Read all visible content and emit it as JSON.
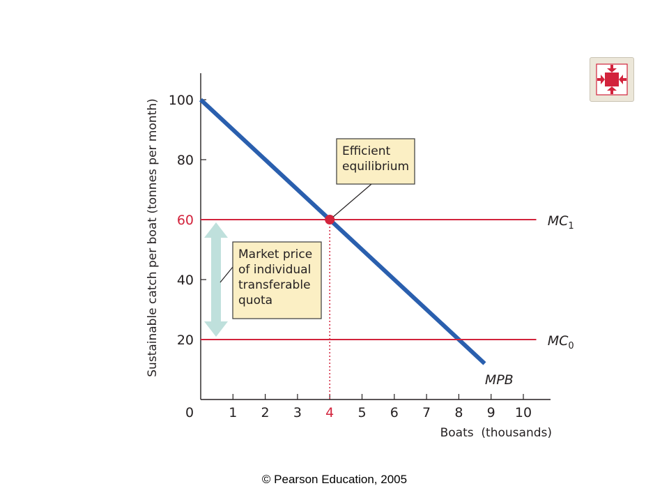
{
  "chart_data": {
    "type": "line",
    "title": "",
    "xlabel": "Boats  (thousands)",
    "ylabel": "Sustainable catch per boat (tonnes per month)",
    "xlim": [
      0,
      10.5
    ],
    "ylim": [
      0,
      110
    ],
    "x_ticks": [
      {
        "value": 0,
        "label": "0"
      },
      {
        "value": 1,
        "label": "1"
      },
      {
        "value": 2,
        "label": "2"
      },
      {
        "value": 3,
        "label": "3"
      },
      {
        "value": 4,
        "label": "4",
        "highlight": true
      },
      {
        "value": 5,
        "label": "5"
      },
      {
        "value": 6,
        "label": "6"
      },
      {
        "value": 7,
        "label": "7"
      },
      {
        "value": 8,
        "label": "8"
      },
      {
        "value": 9,
        "label": "9"
      },
      {
        "value": 10,
        "label": "10"
      }
    ],
    "y_ticks": [
      {
        "value": 20,
        "label": "20"
      },
      {
        "value": 40,
        "label": "40"
      },
      {
        "value": 60,
        "label": "60",
        "highlight": true
      },
      {
        "value": 80,
        "label": "80"
      },
      {
        "value": 100,
        "label": "100"
      }
    ],
    "series": [
      {
        "key": "mpb",
        "label_main": "MPB",
        "label_sub": "",
        "color": "#2a5fae",
        "points": [
          [
            0,
            100
          ],
          [
            8.8,
            12
          ]
        ],
        "label_at": [
          9.25,
          7
        ]
      },
      {
        "key": "mc1",
        "label_main": "MC",
        "label_sub": "1",
        "color": "#d2233c",
        "points": [
          [
            0,
            60
          ],
          [
            10.4,
            60
          ]
        ],
        "label_at": [
          10.75,
          60
        ]
      },
      {
        "key": "mc0",
        "label_main": "MC",
        "label_sub": "0",
        "color": "#d2233c",
        "points": [
          [
            0,
            20
          ],
          [
            10.4,
            20
          ]
        ],
        "label_at": [
          10.75,
          20
        ]
      }
    ],
    "equilibrium": {
      "x": 4,
      "y": 60,
      "color": "#d2233c"
    },
    "annotations": [
      {
        "key": "efficient",
        "lines": [
          "Efficient",
          "equilibrium"
        ]
      },
      {
        "key": "quota",
        "lines": [
          "Market price",
          "of individual",
          "transferable",
          "quota"
        ]
      }
    ],
    "quota_arrow": {
      "from": 20,
      "to": 60,
      "color": "#bfe0dc"
    },
    "grid": false,
    "accent_color": "#d2233c"
  },
  "nav_button": {
    "icon": "collapse-arrows-icon",
    "color": "#d2233c"
  },
  "footer": {
    "copyright": "© Pearson Education, 2005"
  }
}
